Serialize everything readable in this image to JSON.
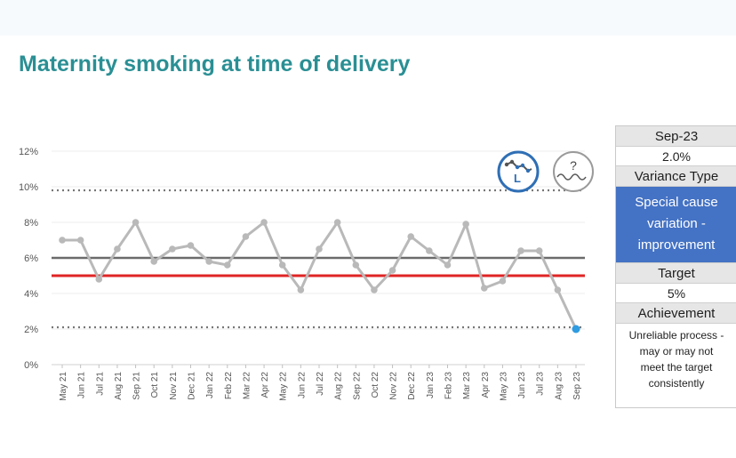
{
  "title": "Maternity smoking at time of delivery",
  "chart_data": {
    "type": "line",
    "title": "Maternity smoking at time of delivery",
    "categories": [
      "May 21",
      "Jun 21",
      "Jul 21",
      "Aug 21",
      "Sep 21",
      "Oct 21",
      "Nov 21",
      "Dec 21",
      "Jan 22",
      "Feb 22",
      "Mar 22",
      "Apr 22",
      "May 22",
      "Jun 22",
      "Jul 22",
      "Aug 22",
      "Sep 22",
      "Oct 22",
      "Nov 22",
      "Dec 22",
      "Jan 23",
      "Feb 23",
      "Mar 23",
      "Apr 23",
      "May 23",
      "Jun 23",
      "Jul 23",
      "Aug 23",
      "Sep 23"
    ],
    "values": [
      7.0,
      7.0,
      4.8,
      6.5,
      8.0,
      5.8,
      6.5,
      6.7,
      5.8,
      5.6,
      7.2,
      8.0,
      5.6,
      4.2,
      6.5,
      8.0,
      5.6,
      4.2,
      5.3,
      7.2,
      6.4,
      5.6,
      7.9,
      4.3,
      4.7,
      6.4,
      6.4,
      4.2,
      2.0
    ],
    "mean": 6.0,
    "target": 5.0,
    "upper_process_limit": 9.8,
    "lower_process_limit": 2.1,
    "y_ticks": [
      "0%",
      "2%",
      "4%",
      "6%",
      "8%",
      "10%",
      "12%"
    ],
    "ylim": [
      0,
      12
    ],
    "y_unit": "%",
    "colors": {
      "series": "#b9b9b9",
      "mean": "#6b6b6b",
      "target": "#e02424",
      "limits": "#777777",
      "last_point": "#2f9be0"
    },
    "icons": {
      "variation": "variation-special-cause-improvement-icon",
      "assurance": "assurance-variable-icon"
    },
    "variation_icon_letter": "L",
    "assurance_icon_symbol": "?"
  },
  "panel": {
    "period": "Sep-23",
    "value": "2.0%",
    "variance_type_label": "Variance Type",
    "variance_lines": [
      "Special cause",
      "variation -",
      "improvement"
    ],
    "target_label": "Target",
    "target_value": "5%",
    "achievement_label": "Achievement",
    "achievement_lines": [
      "Unreliable process -",
      "may or may not",
      "meet the target",
      "consistently"
    ]
  }
}
